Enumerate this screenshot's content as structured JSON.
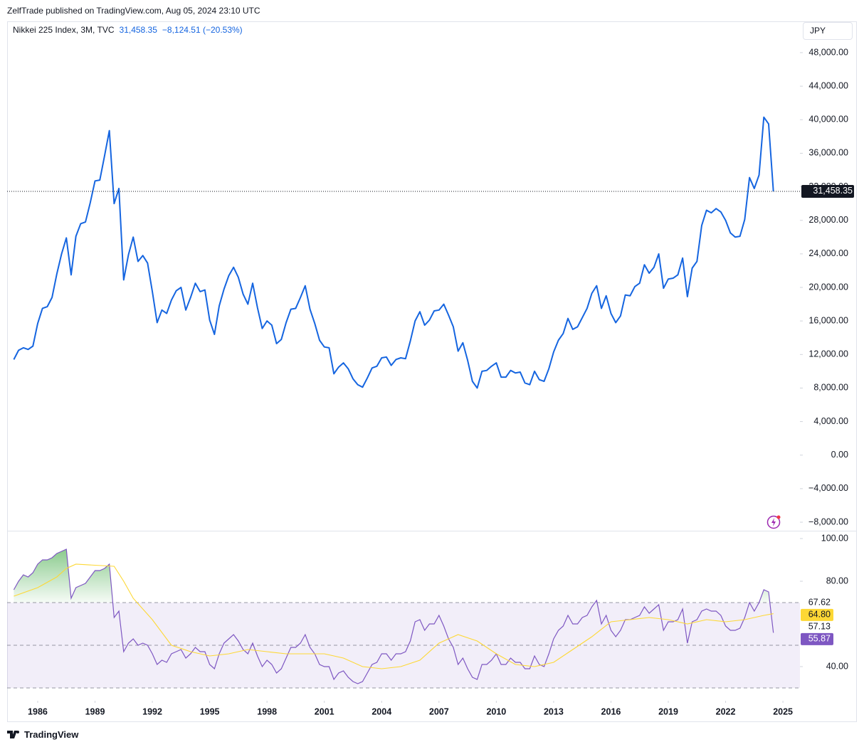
{
  "header": {
    "publisher": "ZelfTrade published on TradingView.com, Aug 05, 2024 23:10 UTC"
  },
  "footer": {
    "brand": "TradingView"
  },
  "chart_data": [
    {
      "type": "line",
      "title": "Nikkei 225 Index, 3M, TVC",
      "currency": "JPY",
      "color": "#1565e0",
      "grid": false,
      "last_price": {
        "value": 31458.35,
        "label": "31,458.35"
      },
      "change": {
        "value": -8124.51,
        "label": "−8,124.51"
      },
      "change_pct": {
        "value": -20.53,
        "label": "(−20.53%)"
      },
      "xlim": [
        1984.4,
        2025.89
      ],
      "ylim": [
        -8933,
        51648
      ],
      "yticks": [
        {
          "value": 48000,
          "label": "48,000.00"
        },
        {
          "value": 44000,
          "label": "44,000.00"
        },
        {
          "value": 40000,
          "label": "40,000.00"
        },
        {
          "value": 36000,
          "label": "36,000.00"
        },
        {
          "value": 32000,
          "label": "32,000.00"
        },
        {
          "value": 28000,
          "label": "28,000.00"
        },
        {
          "value": 24000,
          "label": "24,000.00"
        },
        {
          "value": 20000,
          "label": "20,000.00"
        },
        {
          "value": 16000,
          "label": "16,000.00"
        },
        {
          "value": 12000,
          "label": "12,000.00"
        },
        {
          "value": 8000,
          "label": "8,000.00"
        },
        {
          "value": 4000,
          "label": "4,000.00"
        },
        {
          "value": 0,
          "label": "0.00"
        },
        {
          "value": -4000,
          "label": "−4,000.00"
        },
        {
          "value": -8000,
          "label": "−8,000.00"
        }
      ],
      "x": [
        1984.75,
        1985,
        1985.25,
        1985.5,
        1985.75,
        1986,
        1986.25,
        1986.5,
        1986.75,
        1987,
        1987.25,
        1987.5,
        1987.75,
        1988,
        1988.25,
        1988.5,
        1988.75,
        1989,
        1989.25,
        1989.5,
        1989.75,
        1990,
        1990.25,
        1990.5,
        1990.75,
        1991,
        1991.25,
        1991.5,
        1991.75,
        1992,
        1992.25,
        1992.5,
        1992.75,
        1993,
        1993.25,
        1993.5,
        1993.75,
        1994,
        1994.25,
        1994.5,
        1994.75,
        1995,
        1995.25,
        1995.5,
        1995.75,
        1996,
        1996.25,
        1996.5,
        1996.75,
        1997,
        1997.25,
        1997.5,
        1997.75,
        1998,
        1998.25,
        1998.5,
        1998.75,
        1999,
        1999.25,
        1999.5,
        1999.75,
        2000,
        2000.25,
        2000.5,
        2000.75,
        2001,
        2001.25,
        2001.5,
        2001.75,
        2002,
        2002.25,
        2002.5,
        2002.75,
        2003,
        2003.25,
        2003.5,
        2003.75,
        2004,
        2004.25,
        2004.5,
        2004.75,
        2005,
        2005.25,
        2005.5,
        2005.75,
        2006,
        2006.25,
        2006.5,
        2006.75,
        2007,
        2007.25,
        2007.5,
        2007.75,
        2008,
        2008.25,
        2008.5,
        2008.75,
        2009,
        2009.25,
        2009.5,
        2009.75,
        2010,
        2010.25,
        2010.5,
        2010.75,
        2011,
        2011.25,
        2011.5,
        2011.75,
        2012,
        2012.25,
        2012.5,
        2012.75,
        2013,
        2013.25,
        2013.5,
        2013.75,
        2014,
        2014.25,
        2014.5,
        2014.75,
        2015,
        2015.25,
        2015.5,
        2015.75,
        2016,
        2016.25,
        2016.5,
        2016.75,
        2017,
        2017.25,
        2017.5,
        2017.75,
        2018,
        2018.25,
        2018.5,
        2018.75,
        2019,
        2019.25,
        2019.5,
        2019.75,
        2020,
        2020.25,
        2020.5,
        2020.75,
        2021,
        2021.25,
        2021.5,
        2021.75,
        2022,
        2022.25,
        2022.5,
        2022.75,
        2023,
        2023.25,
        2023.5,
        2023.75,
        2024,
        2024.25,
        2024.5
      ],
      "values": [
        11400,
        12500,
        12800,
        12600,
        13000,
        15700,
        17500,
        17700,
        18800,
        21600,
        24000,
        25900,
        21500,
        26100,
        27600,
        27800,
        30100,
        32700,
        32800,
        35700,
        38700,
        30000,
        31800,
        20900,
        23900,
        26000,
        23100,
        23800,
        22900,
        19500,
        15800,
        17300,
        16900,
        18500,
        19600,
        20000,
        17300,
        18800,
        20500,
        19500,
        19700,
        16100,
        14400,
        17800,
        19800,
        21400,
        22400,
        21200,
        19200,
        18000,
        20500,
        17600,
        15100,
        16000,
        15500,
        13300,
        13800,
        15800,
        17400,
        17500,
        18800,
        20200,
        17400,
        15700,
        13700,
        12900,
        12800,
        9700,
        10500,
        11000,
        10300,
        9100,
        8400,
        8100,
        9200,
        10400,
        10600,
        11600,
        11700,
        10700,
        11400,
        11600,
        11500,
        13600,
        16000,
        17100,
        15500,
        16100,
        17200,
        17300,
        18000,
        16700,
        15300,
        12400,
        13400,
        11300,
        8800,
        8000,
        10000,
        10100,
        10600,
        11000,
        9300,
        9300,
        10100,
        9800,
        9900,
        8600,
        8400,
        10000,
        9000,
        8800,
        10300,
        12300,
        13700,
        14500,
        16300,
        15000,
        15300,
        16400,
        17500,
        19300,
        20200,
        17500,
        19000,
        16900,
        15800,
        16600,
        19100,
        19000,
        20100,
        20500,
        22700,
        21700,
        22400,
        24000,
        19900,
        21000,
        21100,
        21500,
        23500,
        18900,
        22300,
        23100,
        27400,
        29200,
        28900,
        29400,
        29000,
        28000,
        26500,
        26000,
        26100,
        28100,
        33100,
        31800,
        33400,
        40300,
        39500,
        31458.35
      ]
    },
    {
      "type": "line",
      "grid": false,
      "xlim": [
        1984.4,
        2025.89
      ],
      "ylim": [
        24,
        103.33
      ],
      "xticks": [
        1986,
        1989,
        1992,
        1995,
        1998,
        2001,
        2004,
        2007,
        2010,
        2013,
        2016,
        2019,
        2022,
        2025
      ],
      "yticks": [
        {
          "value": 100,
          "label": "100.00"
        },
        {
          "value": 80,
          "label": "80.00"
        },
        {
          "value": 40,
          "label": "40.00"
        }
      ],
      "bands": [
        70,
        50,
        30
      ],
      "band_color": "#7e57c2",
      "overbought_color": "#4caf50",
      "side_labels": [
        67.62,
        57.13
      ],
      "x": [
        1984.75,
        1985,
        1985.25,
        1985.5,
        1985.75,
        1986,
        1986.25,
        1986.5,
        1986.75,
        1987,
        1987.25,
        1987.5,
        1987.75,
        1988,
        1988.25,
        1988.5,
        1988.75,
        1989,
        1989.25,
        1989.5,
        1989.75,
        1990,
        1990.25,
        1990.5,
        1990.75,
        1991,
        1991.25,
        1991.5,
        1991.75,
        1992,
        1992.25,
        1992.5,
        1992.75,
        1993,
        1993.25,
        1993.5,
        1993.75,
        1994,
        1994.25,
        1994.5,
        1994.75,
        1995,
        1995.25,
        1995.5,
        1995.75,
        1996,
        1996.25,
        1996.5,
        1996.75,
        1997,
        1997.25,
        1997.5,
        1997.75,
        1998,
        1998.25,
        1998.5,
        1998.75,
        1999,
        1999.25,
        1999.5,
        1999.75,
        2000,
        2000.25,
        2000.5,
        2000.75,
        2001,
        2001.25,
        2001.5,
        2001.75,
        2002,
        2002.25,
        2002.5,
        2002.75,
        2003,
        2003.25,
        2003.5,
        2003.75,
        2004,
        2004.25,
        2004.5,
        2004.75,
        2005,
        2005.25,
        2005.5,
        2005.75,
        2006,
        2006.25,
        2006.5,
        2006.75,
        2007,
        2007.25,
        2007.5,
        2007.75,
        2008,
        2008.25,
        2008.5,
        2008.75,
        2009,
        2009.25,
        2009.5,
        2009.75,
        2010,
        2010.25,
        2010.5,
        2010.75,
        2011,
        2011.25,
        2011.5,
        2011.75,
        2012,
        2012.25,
        2012.5,
        2012.75,
        2013,
        2013.25,
        2013.5,
        2013.75,
        2014,
        2014.25,
        2014.5,
        2014.75,
        2015,
        2015.25,
        2015.5,
        2015.75,
        2016,
        2016.25,
        2016.5,
        2016.75,
        2017,
        2017.25,
        2017.5,
        2017.75,
        2018,
        2018.25,
        2018.5,
        2018.75,
        2019,
        2019.25,
        2019.5,
        2019.75,
        2020,
        2020.25,
        2020.5,
        2020.75,
        2021,
        2021.25,
        2021.5,
        2021.75,
        2022,
        2022.25,
        2022.5,
        2022.75,
        2023,
        2023.25,
        2023.5,
        2023.75,
        2024,
        2024.25,
        2024.5
      ],
      "series": [
        {
          "color": "#7e57c2",
          "values": [
            76,
            80,
            83,
            82,
            84,
            88,
            90,
            90,
            91,
            93,
            94,
            95,
            72,
            77,
            78,
            79,
            82,
            85,
            85,
            86,
            88,
            63,
            66,
            47,
            51,
            53,
            50,
            51,
            50,
            46,
            41,
            43,
            42,
            46,
            47,
            48,
            44,
            46,
            49,
            47,
            47,
            41,
            39,
            46,
            51,
            53,
            55,
            52,
            48,
            46,
            51,
            45,
            40,
            43,
            41,
            37,
            39,
            44,
            49,
            49,
            51,
            55,
            49,
            46,
            41,
            40,
            40,
            34,
            37,
            38,
            35,
            33,
            32,
            33,
            37,
            41,
            42,
            46,
            46,
            43,
            46,
            46,
            47,
            52,
            61,
            62,
            57,
            60,
            60,
            64,
            59,
            53,
            49,
            41,
            44,
            39,
            35,
            34,
            41,
            41,
            43,
            46,
            41,
            41,
            44,
            42,
            42,
            39,
            39,
            45,
            41,
            40,
            46,
            53,
            57,
            59,
            64,
            60,
            60,
            63,
            64,
            68,
            71,
            60,
            64,
            57,
            54,
            57,
            62,
            62,
            63,
            64,
            68,
            65,
            67,
            69,
            57,
            61,
            61,
            62,
            67,
            51,
            61,
            62,
            66,
            67,
            66,
            66,
            64,
            59,
            57,
            57,
            58,
            63,
            70,
            66,
            70,
            76,
            75,
            55.87
          ]
        },
        {
          "color": "#fdd835",
          "end_label": "64.80",
          "x": [
            1984.75,
            1986,
            1987,
            1987.5,
            1988,
            1989,
            1990,
            1990.5,
            1991,
            1992,
            1993,
            1994,
            1995,
            1996,
            1997,
            1998,
            1999,
            2000,
            2001,
            2002,
            2003,
            2004,
            2005,
            2006,
            2007,
            2008,
            2009,
            2010,
            2011,
            2012,
            2013,
            2014,
            2015,
            2016,
            2017,
            2018,
            2019,
            2020,
            2021,
            2022,
            2023,
            2024,
            2024.5
          ],
          "values": [
            73,
            77,
            82,
            86,
            88,
            87.5,
            87,
            80,
            72,
            62,
            50,
            47,
            45,
            46,
            48,
            47,
            46,
            46,
            46,
            44,
            40,
            39,
            40,
            43,
            51,
            55,
            52,
            46,
            41,
            40,
            42,
            48,
            54,
            61,
            62,
            63,
            62,
            60,
            62,
            61,
            62,
            64,
            64.8
          ]
        }
      ]
    }
  ]
}
